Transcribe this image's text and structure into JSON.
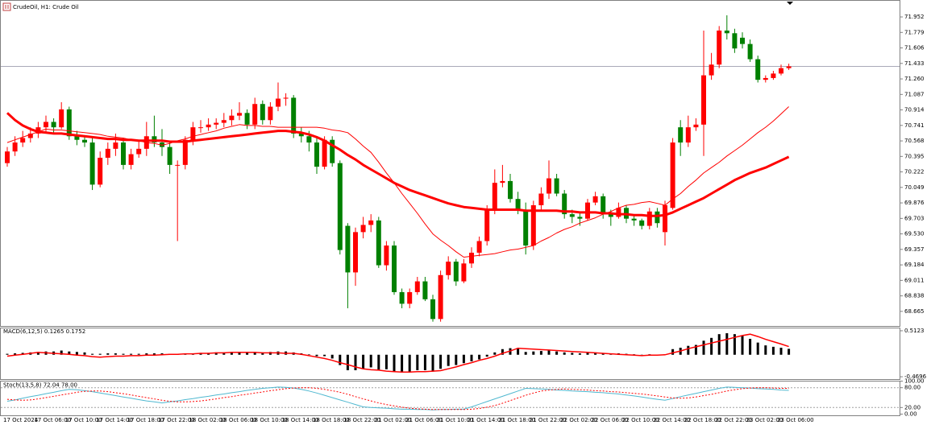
{
  "header": {
    "title": "CrudeOil, H1: Crude Oil"
  },
  "chart_data": [
    {
      "type": "candlestick",
      "categories": [
        "17 Oct 2024",
        null,
        null,
        null,
        "17 Oct 06:00",
        null,
        null,
        null,
        "17 Oct 10:00",
        null,
        null,
        null,
        "17 Oct 14:00",
        null,
        null,
        null,
        "17 Oct 18:00",
        null,
        null,
        null,
        "17 Oct 22:00",
        null,
        null,
        null,
        "18 Oct 02:00",
        null,
        null,
        null,
        "18 Oct 06:00",
        null,
        null,
        null,
        "18 Oct 10:00",
        null,
        null,
        null,
        "18 Oct 14:00",
        null,
        null,
        null,
        "18 Oct 18:00",
        null,
        null,
        null,
        "18 Oct 22:00",
        null,
        null,
        null,
        "21 Oct 02:00",
        null,
        null,
        null,
        "21 Oct 06:00",
        null,
        null,
        null,
        "21 Oct 10:00",
        null,
        null,
        null,
        "21 Oct 14:00",
        null,
        null,
        null,
        "21 Oct 18:00",
        null,
        null,
        null,
        "21 Oct 22:00",
        null,
        null,
        null,
        "22 Oct 02:00",
        null,
        null,
        null,
        "22 Oct 06:00",
        null,
        null,
        null,
        "22 Oct 10:00",
        null,
        null,
        null,
        "22 Oct 14:00",
        null,
        null,
        null,
        "22 Oct 18:00",
        null,
        null,
        null,
        "22 Oct 22:00",
        null,
        null,
        null,
        "23 Oct 02:00",
        null,
        null,
        null,
        "23 Oct 06:00",
        null
      ],
      "open": [
        70.32,
        70.45,
        70.55,
        70.6,
        70.65,
        70.72,
        70.78,
        70.72,
        70.92,
        70.62,
        70.58,
        70.55,
        70.08,
        70.38,
        70.48,
        70.55,
        70.3,
        70.42,
        70.48,
        70.62,
        70.55,
        70.5,
        70.3,
        70.3,
        70.58,
        70.72,
        70.72,
        70.75,
        70.77,
        70.8,
        70.85,
        70.88,
        70.75,
        70.98,
        70.8,
        70.95,
        71.04,
        71.05,
        70.65,
        70.62,
        70.55,
        70.28,
        70.58,
        70.32,
        69.62,
        69.1,
        69.55,
        69.63,
        69.68,
        69.18,
        69.4,
        68.88,
        68.75,
        68.88,
        69.0,
        68.8,
        68.58,
        69.07,
        69.22,
        69.0,
        69.2,
        69.32,
        69.45,
        69.8,
        70.1,
        70.12,
        69.92,
        69.8,
        69.4,
        69.85,
        69.98,
        70.15,
        69.98,
        69.75,
        69.72,
        69.7,
        69.88,
        69.95,
        69.75,
        69.72,
        69.82,
        69.7,
        69.68,
        69.62,
        69.78,
        69.55,
        69.82,
        70.72,
        70.55,
        70.72,
        70.75,
        71.3,
        71.42,
        71.8,
        71.77,
        71.72,
        71.65,
        71.48,
        71.25,
        71.27,
        71.32,
        71.38
      ],
      "high": [
        70.5,
        70.62,
        70.68,
        70.72,
        70.78,
        70.85,
        70.82,
        71.0,
        70.95,
        70.68,
        70.62,
        70.6,
        70.45,
        70.55,
        70.65,
        70.6,
        70.48,
        70.58,
        70.78,
        70.85,
        70.7,
        70.55,
        70.35,
        70.62,
        70.78,
        70.8,
        70.82,
        70.82,
        70.88,
        70.92,
        71.0,
        70.92,
        71.05,
        71.02,
        71.0,
        71.22,
        71.1,
        71.08,
        70.72,
        70.68,
        70.6,
        70.62,
        70.62,
        70.35,
        69.65,
        69.6,
        69.72,
        69.75,
        69.72,
        69.45,
        69.45,
        68.92,
        68.92,
        69.05,
        69.05,
        68.85,
        69.12,
        69.28,
        69.25,
        69.25,
        69.38,
        69.5,
        69.85,
        70.25,
        70.3,
        70.2,
        70.0,
        69.88,
        69.9,
        70.05,
        70.35,
        70.2,
        70.02,
        69.8,
        69.78,
        69.92,
        70.0,
        69.98,
        69.8,
        69.88,
        69.85,
        69.75,
        69.7,
        69.82,
        69.82,
        69.9,
        70.6,
        70.8,
        70.85,
        70.82,
        71.8,
        71.55,
        71.85,
        71.97,
        71.82,
        71.78,
        71.7,
        71.52,
        71.3,
        71.35,
        71.42,
        71.43
      ],
      "low": [
        70.28,
        70.4,
        70.5,
        70.55,
        70.6,
        70.66,
        70.65,
        70.7,
        70.58,
        70.52,
        70.5,
        70.02,
        70.05,
        70.3,
        70.4,
        70.25,
        70.25,
        70.38,
        70.4,
        70.5,
        70.4,
        70.2,
        69.45,
        70.25,
        70.52,
        70.66,
        70.68,
        70.7,
        70.72,
        70.74,
        70.8,
        70.7,
        70.7,
        70.75,
        70.75,
        70.9,
        70.96,
        70.6,
        70.55,
        70.45,
        70.2,
        70.25,
        70.28,
        69.3,
        68.7,
        68.95,
        69.48,
        69.55,
        69.15,
        69.12,
        68.85,
        68.7,
        68.7,
        68.85,
        68.78,
        68.55,
        68.55,
        69.02,
        68.95,
        68.98,
        69.15,
        69.28,
        69.4,
        69.75,
        70.05,
        69.88,
        69.75,
        69.3,
        69.35,
        69.8,
        69.92,
        69.95,
        69.7,
        69.65,
        69.62,
        69.68,
        69.85,
        69.7,
        69.62,
        69.7,
        69.65,
        69.62,
        69.58,
        69.58,
        69.6,
        69.4,
        69.8,
        70.4,
        70.5,
        70.68,
        70.4,
        71.25,
        71.38,
        71.7,
        71.55,
        71.6,
        71.45,
        71.22,
        71.22,
        71.25,
        71.3,
        71.36
      ],
      "close": [
        70.45,
        70.55,
        70.6,
        70.65,
        70.72,
        70.78,
        70.72,
        70.92,
        70.62,
        70.58,
        70.55,
        70.08,
        70.38,
        70.48,
        70.55,
        70.3,
        70.42,
        70.48,
        70.62,
        70.55,
        70.5,
        70.3,
        70.3,
        70.58,
        70.72,
        70.72,
        70.75,
        70.77,
        70.8,
        70.85,
        70.88,
        70.75,
        70.98,
        70.8,
        70.95,
        71.04,
        71.05,
        70.65,
        70.62,
        70.55,
        70.28,
        70.58,
        70.32,
        69.35,
        69.1,
        69.55,
        69.63,
        69.68,
        69.18,
        69.4,
        68.88,
        68.75,
        68.88,
        69.0,
        68.8,
        68.58,
        69.07,
        69.22,
        69.0,
        69.2,
        69.32,
        69.45,
        69.8,
        70.1,
        70.12,
        69.92,
        69.8,
        69.4,
        69.85,
        69.98,
        70.15,
        69.98,
        69.75,
        69.72,
        69.7,
        69.88,
        69.95,
        69.75,
        69.72,
        69.82,
        69.7,
        69.68,
        69.62,
        69.78,
        69.65,
        69.85,
        70.55,
        70.55,
        70.72,
        70.75,
        71.3,
        71.42,
        71.8,
        71.77,
        71.6,
        71.65,
        71.48,
        71.25,
        71.27,
        71.32,
        71.38,
        71.4
      ],
      "up_color": "#ff0000",
      "down_color": "#008000",
      "overlays": [
        {
          "color": "#ff0000",
          "width": 1,
          "values": [
            70.55,
            70.58,
            70.61,
            70.64,
            70.67,
            70.7,
            70.69,
            70.69,
            70.68,
            70.67,
            70.66,
            70.65,
            70.64,
            70.62,
            70.61,
            70.6,
            70.58,
            70.57,
            70.55,
            70.54,
            70.52,
            70.54,
            70.57,
            70.59,
            70.62,
            70.64,
            70.66,
            70.68,
            70.71,
            70.73,
            70.75,
            70.74,
            70.74,
            70.73,
            70.73,
            70.72,
            70.72,
            70.72,
            70.72,
            70.72,
            70.72,
            70.71,
            70.69,
            70.68,
            70.66,
            70.59,
            70.51,
            70.44,
            70.33,
            70.21,
            70.1,
            69.98,
            69.87,
            69.76,
            69.64,
            69.53,
            69.46,
            69.4,
            69.33,
            69.27,
            69.28,
            69.29,
            69.3,
            69.31,
            69.33,
            69.35,
            69.36,
            69.38,
            69.4,
            69.45,
            69.49,
            69.54,
            69.58,
            69.61,
            69.65,
            69.68,
            69.71,
            69.75,
            69.78,
            69.82,
            69.85,
            69.86,
            69.88,
            69.89,
            69.87,
            69.85,
            69.92,
            69.98,
            70.06,
            70.13,
            70.21,
            70.27,
            70.33,
            70.4,
            70.46,
            70.52,
            70.59,
            70.66,
            70.72,
            70.79,
            70.87,
            70.95
          ]
        },
        {
          "color": "#ff0000",
          "width": 3,
          "values": [
            70.88,
            70.8,
            70.74,
            70.7,
            70.67,
            70.66,
            70.65,
            70.65,
            70.64,
            70.63,
            70.62,
            70.61,
            70.6,
            70.59,
            70.59,
            70.58,
            70.58,
            70.57,
            70.57,
            70.57,
            70.57,
            70.56,
            70.56,
            70.56,
            70.57,
            70.58,
            70.59,
            70.6,
            70.61,
            70.62,
            70.63,
            70.64,
            70.65,
            70.66,
            70.67,
            70.68,
            70.68,
            70.67,
            70.66,
            70.64,
            70.61,
            70.57,
            70.52,
            70.47,
            70.41,
            70.36,
            70.3,
            70.25,
            70.2,
            70.15,
            70.1,
            70.06,
            70.02,
            69.99,
            69.96,
            69.93,
            69.9,
            69.87,
            69.85,
            69.83,
            69.82,
            69.81,
            69.8,
            69.8,
            69.8,
            69.8,
            69.8,
            69.79,
            69.79,
            69.79,
            69.79,
            69.79,
            69.78,
            69.78,
            69.77,
            69.77,
            69.77,
            69.76,
            69.76,
            69.75,
            69.75,
            69.74,
            69.74,
            69.73,
            69.73,
            69.74,
            69.77,
            69.81,
            69.85,
            69.89,
            69.93,
            69.98,
            70.03,
            70.08,
            70.13,
            70.17,
            70.21,
            70.24,
            70.27,
            70.31,
            70.35,
            70.39
          ]
        }
      ],
      "ylim": [
        68.502,
        72.123
      ],
      "yticks": [
        71.952,
        71.779,
        71.606,
        71.433,
        {
          "value": 71.26,
          "label": "71.260"
        },
        71.087,
        70.914,
        70.741,
        70.568,
        70.395,
        70.222,
        70.049,
        69.876,
        69.703,
        {
          "value": 69.53,
          "label": "69.530"
        },
        69.357,
        69.184,
        69.011,
        68.838,
        68.665
      ]
    },
    {
      "type": "macd",
      "label": "MACD(6,12,5) 0.1265 0.1752",
      "histogram": [
        0.02,
        0.03,
        0.04,
        0.05,
        0.06,
        0.07,
        0.07,
        0.09,
        0.07,
        0.06,
        0.05,
        0.02,
        0.02,
        0.03,
        0.03,
        0.02,
        0.02,
        0.02,
        0.03,
        0.03,
        0.03,
        0.02,
        0.02,
        0.02,
        0.03,
        0.04,
        0.04,
        0.05,
        0.05,
        0.06,
        0.06,
        0.05,
        0.06,
        0.05,
        0.06,
        0.07,
        0.07,
        0.05,
        0.03,
        0.01,
        -0.03,
        -0.03,
        -0.08,
        -0.22,
        -0.33,
        -0.33,
        -0.3,
        -0.27,
        -0.32,
        -0.31,
        -0.36,
        -0.38,
        -0.36,
        -0.33,
        -0.33,
        -0.36,
        -0.3,
        -0.24,
        -0.22,
        -0.18,
        -0.14,
        -0.1,
        -0.04,
        0.05,
        0.12,
        0.14,
        0.13,
        0.06,
        0.07,
        0.08,
        0.09,
        0.07,
        0.05,
        0.04,
        0.03,
        0.04,
        0.05,
        0.03,
        0.02,
        0.03,
        0.02,
        0.01,
        0.0,
        0.01,
        0.0,
        0.01,
        0.12,
        0.15,
        0.19,
        0.21,
        0.3,
        0.36,
        0.44,
        0.46,
        0.44,
        0.4,
        0.34,
        0.26,
        0.2,
        0.17,
        0.15,
        0.1265
      ],
      "signal": [
        -0.03,
        -0.01,
        0.01,
        0.03,
        0.05,
        0.04,
        0.03,
        0.02,
        0.01,
        -0.01,
        -0.02,
        -0.04,
        -0.05,
        -0.04,
        -0.03,
        -0.03,
        -0.02,
        -0.02,
        -0.01,
        -0.01,
        0.0,
        0.01,
        0.01,
        0.02,
        0.02,
        0.03,
        0.03,
        0.04,
        0.04,
        0.05,
        0.05,
        0.05,
        0.05,
        0.04,
        0.04,
        0.04,
        0.03,
        0.03,
        0.01,
        -0.02,
        -0.05,
        -0.08,
        -0.12,
        -0.17,
        -0.21,
        -0.26,
        -0.3,
        -0.32,
        -0.33,
        -0.35,
        -0.36,
        -0.37,
        -0.37,
        -0.36,
        -0.36,
        -0.35,
        -0.34,
        -0.3,
        -0.26,
        -0.21,
        -0.17,
        -0.12,
        -0.08,
        -0.03,
        0.03,
        0.08,
        0.14,
        0.13,
        0.12,
        0.11,
        0.1,
        0.09,
        0.08,
        0.07,
        0.06,
        0.05,
        0.04,
        0.03,
        0.02,
        0.01,
        0.0,
        -0.01,
        -0.02,
        -0.01,
        -0.01,
        0.0,
        0.04,
        0.08,
        0.13,
        0.17,
        0.21,
        0.25,
        0.29,
        0.33,
        0.37,
        0.41,
        0.44,
        0.39,
        0.33,
        0.28,
        0.23,
        0.1752
      ],
      "bar_color": "#000000",
      "signal_color": "#ff0000",
      "ylim": [
        -0.52,
        0.563
      ],
      "yticks": [
        0.5123,
        -0.4696
      ]
    },
    {
      "type": "stochastic",
      "label": "Stoch(13,5,8) 72.04 78.00",
      "main": [
        39,
        43,
        48,
        53,
        57,
        62,
        66,
        71,
        75,
        74,
        71,
        68,
        64,
        60,
        56,
        52,
        48,
        44,
        40,
        37,
        34,
        37,
        40,
        44,
        47,
        51,
        54,
        58,
        61,
        65,
        68,
        72,
        75,
        78,
        80,
        82,
        81,
        79,
        75,
        70,
        64,
        57,
        50,
        43,
        36,
        29,
        22,
        20,
        19,
        18,
        16,
        15,
        15,
        14,
        14,
        13,
        14,
        14,
        15,
        15,
        22,
        30,
        38,
        46,
        54,
        62,
        70,
        78,
        77,
        76,
        75,
        73,
        72,
        70,
        69,
        68,
        66,
        65,
        63,
        61,
        58,
        55,
        52,
        48,
        45,
        42,
        47,
        53,
        58,
        63,
        68,
        73,
        78,
        82,
        81,
        80,
        79,
        77,
        76,
        75,
        73,
        72.04
      ],
      "signal": [
        45,
        43,
        42,
        43,
        46,
        50,
        54,
        58,
        62,
        66,
        69,
        70,
        70,
        68,
        65,
        62,
        58,
        54,
        50,
        46,
        42,
        39,
        37,
        37,
        38,
        40,
        43,
        46,
        50,
        53,
        57,
        60,
        64,
        67,
        71,
        74,
        77,
        79,
        80,
        80,
        78,
        75,
        71,
        66,
        60,
        53,
        46,
        40,
        34,
        29,
        25,
        21,
        18,
        16,
        15,
        14,
        14,
        14,
        14,
        14,
        15,
        17,
        21,
        26,
        33,
        41,
        49,
        57,
        64,
        70,
        73,
        75,
        76,
        75,
        74,
        73,
        71,
        70,
        68,
        67,
        65,
        63,
        61,
        58,
        55,
        52,
        49,
        48,
        49,
        52,
        56,
        60,
        65,
        70,
        74,
        77,
        79,
        80,
        80,
        79,
        78,
        78
      ],
      "main_color": "#4fb8d0",
      "signal_color": "#ff0000",
      "ylim": [
        0,
        100
      ],
      "yticks": [
        {
          "value": 100,
          "label": "100.00"
        },
        {
          "value": 80,
          "label": "80.00"
        },
        {
          "value": 20,
          "label": "20.00"
        },
        {
          "value": 0,
          "label": "0.00"
        }
      ]
    }
  ]
}
